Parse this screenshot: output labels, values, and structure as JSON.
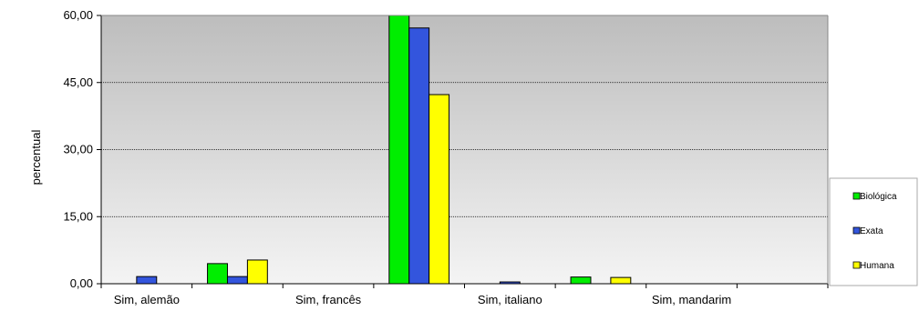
{
  "chart_data": {
    "type": "bar",
    "title": "",
    "xlabel": "",
    "ylabel": "percentual",
    "ylim": [
      0,
      60
    ],
    "yticks": [
      "0,00",
      "15,00",
      "30,00",
      "45,00",
      "60,00"
    ],
    "ytick_values": [
      0,
      15,
      30,
      45,
      60
    ],
    "categories": [
      "Sim, alemão",
      "",
      "Sim, francês",
      "",
      "Sim, italiano",
      "",
      "Sim, mandarim",
      ""
    ],
    "series": [
      {
        "name": "Biológica",
        "color": "#00ee00",
        "values": [
          0,
          4.5,
          0,
          60.5,
          0,
          1.5,
          0,
          0
        ]
      },
      {
        "name": "Exata",
        "color": "#3355dd",
        "values": [
          1.6,
          1.6,
          0,
          57.2,
          0.4,
          0,
          0,
          0
        ]
      },
      {
        "name": "Humana",
        "color": "#ffff00",
        "values": [
          0,
          5.3,
          0,
          42.3,
          0,
          1.4,
          0,
          0
        ]
      }
    ],
    "legend_position": "right",
    "grid": true,
    "plot_background": "gradient gray"
  }
}
